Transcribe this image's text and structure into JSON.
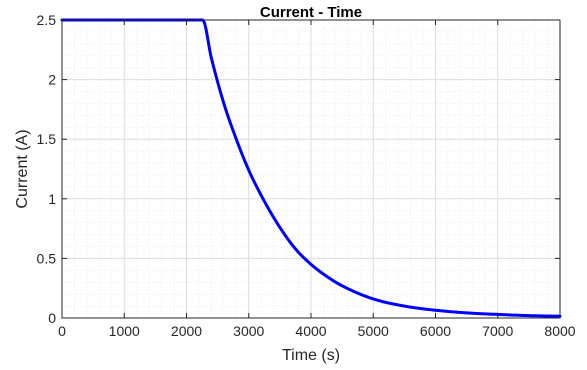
{
  "chart_data": {
    "type": "line",
    "title": "Current - Time",
    "xlabel": "Time (s)",
    "ylabel": "Current (A)",
    "xlim": [
      0,
      8000
    ],
    "ylim": [
      0,
      2.5
    ],
    "xticks": [
      "0",
      "1000",
      "2000",
      "3000",
      "4000",
      "5000",
      "6000",
      "7000",
      "8000"
    ],
    "yticks": [
      "0",
      "0.5",
      "1",
      "1.5",
      "2",
      "2.5"
    ],
    "grid": true,
    "minor_grid": true,
    "series": [
      {
        "color": "#0000ff",
        "x": [
          0,
          500,
          1000,
          1500,
          2000,
          2260,
          2400,
          2600,
          2800,
          3000,
          3250,
          3500,
          3750,
          4000,
          4250,
          4500,
          5000,
          5500,
          6000,
          6500,
          7000,
          7500,
          8000
        ],
        "y": [
          2.5,
          2.5,
          2.5,
          2.5,
          2.5,
          2.5,
          2.18,
          1.8,
          1.5,
          1.24,
          0.98,
          0.76,
          0.58,
          0.45,
          0.35,
          0.27,
          0.16,
          0.1,
          0.065,
          0.043,
          0.03,
          0.02,
          0.015
        ]
      }
    ]
  }
}
